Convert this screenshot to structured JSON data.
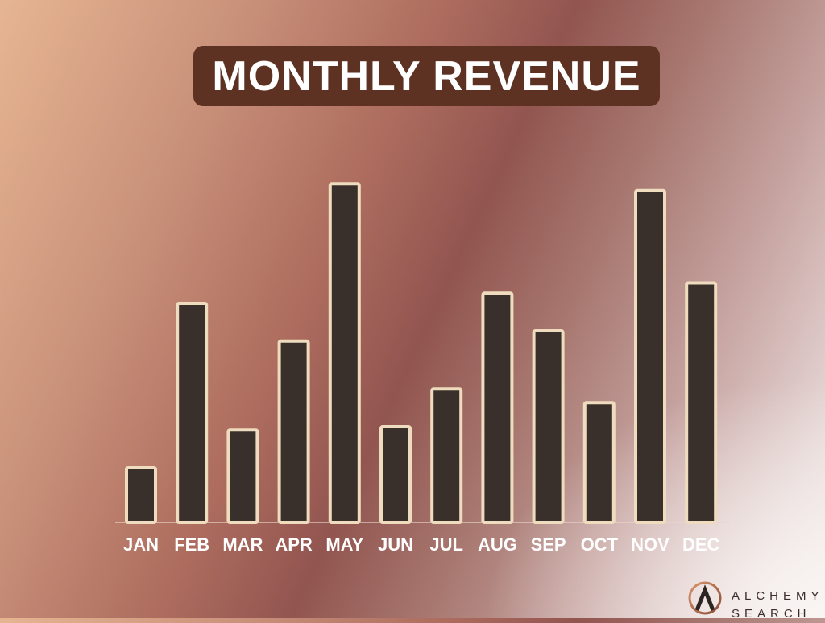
{
  "title": "MONTHLY REVENUE",
  "chart_data": {
    "type": "bar",
    "categories": [
      "JAN",
      "FEB",
      "MAR",
      "APR",
      "MAY",
      "JUN",
      "JUL",
      "AUG",
      "SEP",
      "OCT",
      "NOV",
      "DEC"
    ],
    "values": [
      16,
      64,
      27,
      53,
      99,
      28,
      39,
      67,
      56,
      35,
      97,
      70
    ],
    "title": "MONTHLY REVENUE",
    "xlabel": "",
    "ylabel": "",
    "ylim": [
      0,
      100
    ],
    "grid": false,
    "legend": "none",
    "colors": {
      "bar_fill": "#3a302b",
      "bar_outline": "#efdcbe",
      "title_bg": "#5e3223"
    }
  },
  "logo": {
    "line1": "ALCHEMY",
    "line2": "SEARCH"
  }
}
